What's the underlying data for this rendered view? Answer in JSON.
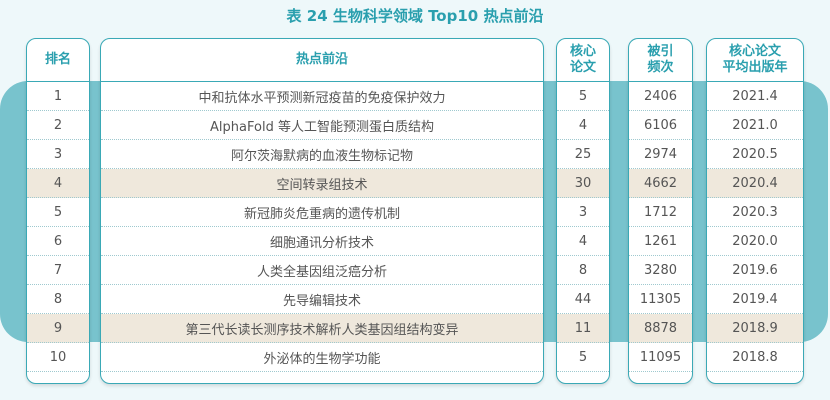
{
  "title": "表 24  生物科学领域 Top10 热点前沿",
  "colors": {
    "accent": "#2a9fae",
    "band": "#78c3cd",
    "highlight": "#efe8dc"
  },
  "headers": [
    "排名",
    "热点前沿",
    "核心\n论文",
    "被引\n频次",
    "核心论文\n平均出版年"
  ],
  "highlighted_ranks": [
    4,
    9
  ],
  "rows": [
    {
      "rank": "1",
      "front": "中和抗体水平预测新冠疫苗的免疫保护效力",
      "papers": "5",
      "citations": "2406",
      "year": "2021.4"
    },
    {
      "rank": "2",
      "front": "AlphaFold 等人工智能预测蛋白质结构",
      "papers": "4",
      "citations": "6106",
      "year": "2021.0"
    },
    {
      "rank": "3",
      "front": "阿尔茨海默病的血液生物标记物",
      "papers": "25",
      "citations": "2974",
      "year": "2020.5"
    },
    {
      "rank": "4",
      "front": "空间转录组技术",
      "papers": "30",
      "citations": "4662",
      "year": "2020.4"
    },
    {
      "rank": "5",
      "front": "新冠肺炎危重病的遗传机制",
      "papers": "3",
      "citations": "1712",
      "year": "2020.3"
    },
    {
      "rank": "6",
      "front": "细胞通讯分析技术",
      "papers": "4",
      "citations": "1261",
      "year": "2020.0"
    },
    {
      "rank": "7",
      "front": "人类全基因组泛癌分析",
      "papers": "8",
      "citations": "3280",
      "year": "2019.6"
    },
    {
      "rank": "8",
      "front": "先导编辑技术",
      "papers": "44",
      "citations": "11305",
      "year": "2019.4"
    },
    {
      "rank": "9",
      "front": "第三代长读长测序技术解析人类基因组结构变异",
      "papers": "11",
      "citations": "8878",
      "year": "2018.9"
    },
    {
      "rank": "10",
      "front": "外泌体的生物学功能",
      "papers": "5",
      "citations": "11095",
      "year": "2018.8"
    }
  ]
}
